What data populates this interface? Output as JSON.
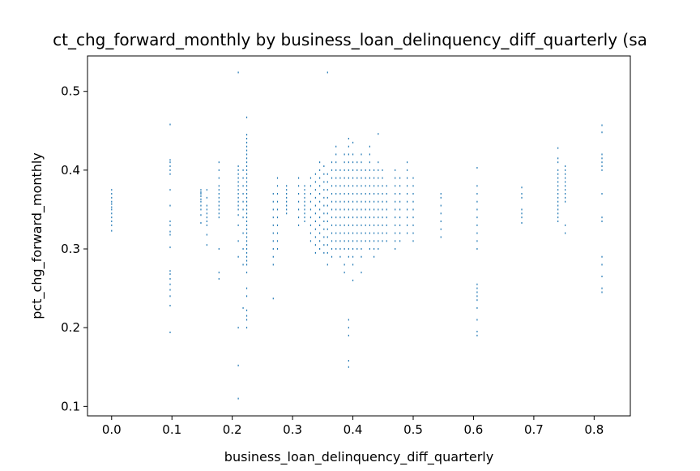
{
  "chart_data": {
    "type": "scatter",
    "title": "ct_chg_forward_monthly by business_loan_delinquency_diff_quarterly (sa",
    "xlabel": "business_loan_delinquency_diff_quarterly",
    "ylabel": "pct_chg_forward_monthly",
    "xlim": [
      -0.04,
      0.86
    ],
    "ylim": [
      0.088,
      0.545
    ],
    "x_ticks": [
      0.0,
      0.1,
      0.2,
      0.3,
      0.4,
      0.5,
      0.6,
      0.7,
      0.8
    ],
    "x_tick_labels": [
      "0.0",
      "0.1",
      "0.2",
      "0.3",
      "0.4",
      "0.5",
      "0.6",
      "0.7",
      "0.8"
    ],
    "y_ticks": [
      0.1,
      0.2,
      0.3,
      0.4,
      0.5
    ],
    "y_tick_labels": [
      "0.1",
      "0.2",
      "0.3",
      "0.4",
      "0.5"
    ],
    "grid": false,
    "marker_color": "#1f77b4",
    "columns": [
      {
        "x": 0.0,
        "ys": [
          0.323,
          0.33,
          0.335,
          0.34,
          0.345,
          0.35,
          0.353,
          0.357,
          0.36,
          0.365,
          0.37,
          0.375
        ]
      },
      {
        "x": 0.097,
        "ys": [
          0.194,
          0.228,
          0.24,
          0.248,
          0.255,
          0.262,
          0.268,
          0.272,
          0.302,
          0.318,
          0.322,
          0.33,
          0.335,
          0.355,
          0.375,
          0.395,
          0.4,
          0.405,
          0.41,
          0.413,
          0.458
        ]
      },
      {
        "x": 0.148,
        "ys": [
          0.333,
          0.343,
          0.35,
          0.355,
          0.36,
          0.363,
          0.367,
          0.37,
          0.372,
          0.375
        ]
      },
      {
        "x": 0.158,
        "ys": [
          0.305,
          0.318,
          0.33,
          0.335,
          0.34,
          0.345,
          0.35,
          0.355,
          0.365,
          0.375
        ]
      },
      {
        "x": 0.178,
        "ys": [
          0.262,
          0.27,
          0.3,
          0.34,
          0.345,
          0.35,
          0.355,
          0.36,
          0.365,
          0.37,
          0.375,
          0.38,
          0.39,
          0.4,
          0.41
        ]
      },
      {
        "x": 0.21,
        "ys": [
          0.11,
          0.152,
          0.2,
          0.29,
          0.31,
          0.33,
          0.343,
          0.35,
          0.355,
          0.36,
          0.365,
          0.37,
          0.375,
          0.38,
          0.385,
          0.39,
          0.395,
          0.4,
          0.405,
          0.524
        ]
      },
      {
        "x": 0.218,
        "ys": [
          0.225,
          0.28,
          0.3,
          0.32,
          0.34,
          0.35,
          0.36,
          0.37,
          0.38,
          0.39,
          0.4
        ]
      },
      {
        "x": 0.224,
        "ys": [
          0.2,
          0.21,
          0.215,
          0.222,
          0.24,
          0.25,
          0.27,
          0.28,
          0.285,
          0.29,
          0.295,
          0.3,
          0.305,
          0.31,
          0.315,
          0.32,
          0.325,
          0.33,
          0.335,
          0.34,
          0.345,
          0.35,
          0.355,
          0.36,
          0.365,
          0.37,
          0.375,
          0.38,
          0.385,
          0.39,
          0.395,
          0.4,
          0.405,
          0.41,
          0.415,
          0.42,
          0.425,
          0.43,
          0.435,
          0.44,
          0.445,
          0.467
        ]
      },
      {
        "x": 0.268,
        "ys": [
          0.237,
          0.28,
          0.29,
          0.3,
          0.31,
          0.32,
          0.33,
          0.34,
          0.35,
          0.36,
          0.37
        ]
      },
      {
        "x": 0.275,
        "ys": [
          0.3,
          0.31,
          0.32,
          0.33,
          0.34,
          0.35,
          0.36,
          0.37,
          0.38,
          0.39
        ]
      },
      {
        "x": 0.29,
        "ys": [
          0.345,
          0.35,
          0.355,
          0.36,
          0.365,
          0.37,
          0.375,
          0.38
        ]
      },
      {
        "x": 0.31,
        "ys": [
          0.33,
          0.34,
          0.35,
          0.36,
          0.37,
          0.38,
          0.39
        ]
      },
      {
        "x": 0.32,
        "ys": [
          0.335,
          0.34,
          0.345,
          0.35,
          0.355,
          0.36,
          0.365,
          0.37,
          0.375,
          0.38
        ]
      },
      {
        "x": 0.33,
        "ys": [
          0.31,
          0.32,
          0.33,
          0.34,
          0.35,
          0.36,
          0.37,
          0.38,
          0.39
        ]
      },
      {
        "x": 0.338,
        "ys": [
          0.295,
          0.305,
          0.315,
          0.325,
          0.335,
          0.345,
          0.355,
          0.365,
          0.375,
          0.385,
          0.395
        ]
      },
      {
        "x": 0.345,
        "ys": [
          0.3,
          0.31,
          0.32,
          0.33,
          0.34,
          0.35,
          0.36,
          0.37,
          0.38,
          0.39,
          0.4,
          0.41
        ]
      },
      {
        "x": 0.352,
        "ys": [
          0.295,
          0.305,
          0.315,
          0.325,
          0.335,
          0.345,
          0.355,
          0.365,
          0.375,
          0.385,
          0.395,
          0.405
        ]
      },
      {
        "x": 0.358,
        "ys": [
          0.28,
          0.295,
          0.305,
          0.315,
          0.325,
          0.335,
          0.345,
          0.355,
          0.365,
          0.375,
          0.385,
          0.395,
          0.524
        ]
      },
      {
        "x": 0.365,
        "ys": [
          0.29,
          0.3,
          0.31,
          0.32,
          0.33,
          0.34,
          0.35,
          0.36,
          0.37,
          0.38,
          0.39,
          0.4,
          0.41
        ]
      },
      {
        "x": 0.372,
        "ys": [
          0.3,
          0.31,
          0.32,
          0.33,
          0.34,
          0.35,
          0.36,
          0.37,
          0.38,
          0.39,
          0.4,
          0.41,
          0.42,
          0.43
        ]
      },
      {
        "x": 0.379,
        "ys": [
          0.29,
          0.3,
          0.31,
          0.32,
          0.33,
          0.34,
          0.35,
          0.36,
          0.37,
          0.38,
          0.39,
          0.4
        ]
      },
      {
        "x": 0.386,
        "ys": [
          0.27,
          0.28,
          0.3,
          0.31,
          0.32,
          0.33,
          0.34,
          0.35,
          0.36,
          0.37,
          0.38,
          0.39,
          0.4,
          0.41,
          0.42
        ]
      },
      {
        "x": 0.393,
        "ys": [
          0.15,
          0.158,
          0.19,
          0.2,
          0.21,
          0.29,
          0.3,
          0.31,
          0.32,
          0.33,
          0.34,
          0.35,
          0.36,
          0.37,
          0.38,
          0.39,
          0.4,
          0.41,
          0.42,
          0.43,
          0.44
        ]
      },
      {
        "x": 0.4,
        "ys": [
          0.26,
          0.28,
          0.29,
          0.3,
          0.31,
          0.32,
          0.33,
          0.34,
          0.35,
          0.36,
          0.37,
          0.38,
          0.39,
          0.4,
          0.41,
          0.42,
          0.435
        ]
      },
      {
        "x": 0.407,
        "ys": [
          0.3,
          0.31,
          0.32,
          0.33,
          0.34,
          0.35,
          0.36,
          0.37,
          0.38,
          0.39,
          0.4,
          0.41
        ]
      },
      {
        "x": 0.414,
        "ys": [
          0.27,
          0.29,
          0.3,
          0.31,
          0.32,
          0.33,
          0.34,
          0.35,
          0.36,
          0.37,
          0.38,
          0.39,
          0.4,
          0.41,
          0.42
        ]
      },
      {
        "x": 0.421,
        "ys": [
          0.31,
          0.32,
          0.33,
          0.34,
          0.35,
          0.36,
          0.37,
          0.38,
          0.39,
          0.4
        ]
      },
      {
        "x": 0.428,
        "ys": [
          0.3,
          0.31,
          0.32,
          0.33,
          0.34,
          0.35,
          0.36,
          0.37,
          0.38,
          0.39,
          0.4,
          0.41,
          0.42,
          0.43
        ]
      },
      {
        "x": 0.435,
        "ys": [
          0.29,
          0.3,
          0.31,
          0.32,
          0.33,
          0.34,
          0.35,
          0.36,
          0.37,
          0.38,
          0.39,
          0.4
        ]
      },
      {
        "x": 0.442,
        "ys": [
          0.3,
          0.31,
          0.32,
          0.33,
          0.34,
          0.35,
          0.36,
          0.37,
          0.38,
          0.39,
          0.4,
          0.41,
          0.446
        ]
      },
      {
        "x": 0.449,
        "ys": [
          0.31,
          0.32,
          0.33,
          0.34,
          0.35,
          0.36,
          0.37,
          0.38,
          0.39,
          0.4
        ]
      },
      {
        "x": 0.456,
        "ys": [
          0.31,
          0.32,
          0.33,
          0.34,
          0.35,
          0.36,
          0.37,
          0.38
        ]
      },
      {
        "x": 0.47,
        "ys": [
          0.3,
          0.31,
          0.32,
          0.33,
          0.34,
          0.35,
          0.36,
          0.37,
          0.38,
          0.39,
          0.4
        ]
      },
      {
        "x": 0.478,
        "ys": [
          0.31,
          0.32,
          0.33,
          0.34,
          0.35,
          0.36,
          0.37,
          0.38,
          0.39
        ]
      },
      {
        "x": 0.49,
        "ys": [
          0.32,
          0.33,
          0.34,
          0.35,
          0.36,
          0.37,
          0.38,
          0.39,
          0.4,
          0.41
        ]
      },
      {
        "x": 0.5,
        "ys": [
          0.31,
          0.32,
          0.33,
          0.34,
          0.35,
          0.36,
          0.37,
          0.38,
          0.39
        ]
      },
      {
        "x": 0.546,
        "ys": [
          0.315,
          0.325,
          0.335,
          0.345,
          0.355,
          0.365,
          0.37
        ]
      },
      {
        "x": 0.606,
        "ys": [
          0.19,
          0.195,
          0.21,
          0.225,
          0.235,
          0.24,
          0.245,
          0.25,
          0.255,
          0.3,
          0.31,
          0.32,
          0.33,
          0.34,
          0.35,
          0.36,
          0.37,
          0.38,
          0.403
        ]
      },
      {
        "x": 0.68,
        "ys": [
          0.333,
          0.34,
          0.345,
          0.35,
          0.365,
          0.37,
          0.378
        ]
      },
      {
        "x": 0.74,
        "ys": [
          0.335,
          0.34,
          0.345,
          0.35,
          0.355,
          0.36,
          0.365,
          0.37,
          0.375,
          0.38,
          0.385,
          0.39,
          0.395,
          0.4,
          0.41,
          0.415,
          0.428
        ]
      },
      {
        "x": 0.752,
        "ys": [
          0.32,
          0.33,
          0.36,
          0.365,
          0.37,
          0.375,
          0.38,
          0.385,
          0.39,
          0.395,
          0.4,
          0.405
        ]
      },
      {
        "x": 0.813,
        "ys": [
          0.245,
          0.25,
          0.265,
          0.28,
          0.29,
          0.335,
          0.34,
          0.37,
          0.4,
          0.405,
          0.41,
          0.415,
          0.42,
          0.448,
          0.457
        ]
      }
    ]
  }
}
